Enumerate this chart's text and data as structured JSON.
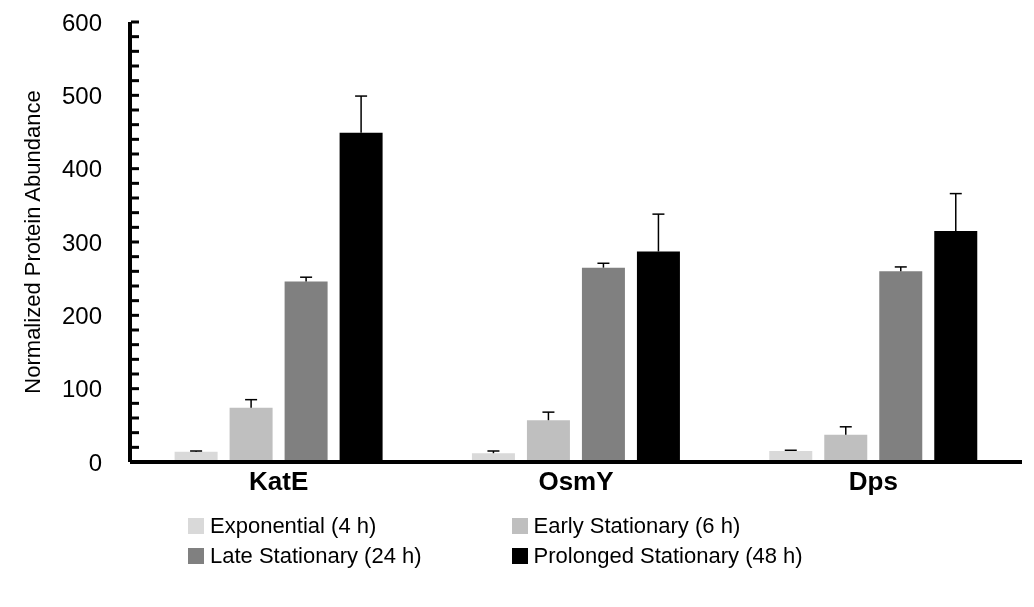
{
  "chart_data": {
    "type": "bar",
    "ylabel": "Normalized Protein Abundance",
    "categories": [
      "KatE",
      "OsmY",
      "Dps"
    ],
    "series": [
      {
        "name": "Exponential (4 h)",
        "color": "#d9d9d9",
        "values": [
          14,
          12,
          15
        ],
        "errors": [
          [
            14,
            15
          ],
          [
            12,
            15
          ],
          [
            15,
            16
          ]
        ]
      },
      {
        "name": "Early Stationary (6 h)",
        "color": "#bfbfbf",
        "values": [
          74,
          57,
          37
        ],
        "errors": [
          [
            74,
            85
          ],
          [
            57,
            68
          ],
          [
            37,
            48
          ]
        ]
      },
      {
        "name": "Late Stationary (24 h)",
        "color": "#808080",
        "values": [
          246,
          265,
          260
        ],
        "errors": [
          [
            246,
            252
          ],
          [
            265,
            271
          ],
          [
            260,
            266
          ]
        ]
      },
      {
        "name": "Prolonged Stationary (48 h)",
        "color": "#000000",
        "values": [
          449,
          287,
          315
        ],
        "errors": [
          [
            449,
            499
          ],
          [
            287,
            338
          ],
          [
            315,
            366
          ]
        ]
      }
    ],
    "ylim": [
      0,
      600
    ],
    "yticks": [
      0,
      {
        "value": 20,
        "label": null
      },
      {
        "value": 40,
        "label": null
      },
      {
        "value": 60,
        "label": null
      },
      {
        "value": 80,
        "label": null
      },
      100,
      {
        "value": 120,
        "label": null
      },
      {
        "value": 140,
        "label": null
      },
      {
        "value": 160,
        "label": null
      },
      {
        "value": 180,
        "label": null
      },
      200,
      {
        "value": 220,
        "label": null
      },
      {
        "value": 240,
        "label": null
      },
      {
        "value": 260,
        "label": null
      },
      {
        "value": 280,
        "label": null
      },
      300,
      {
        "value": 320,
        "label": null
      },
      {
        "value": 340,
        "label": null
      },
      {
        "value": 360,
        "label": null
      },
      {
        "value": 380,
        "label": null
      },
      400,
      {
        "value": 420,
        "label": null
      },
      {
        "value": 440,
        "label": null
      },
      {
        "value": 460,
        "label": null
      },
      {
        "value": 480,
        "label": null
      },
      500,
      {
        "value": 520,
        "label": null
      },
      {
        "value": 540,
        "label": null
      },
      {
        "value": 560,
        "label": null
      },
      {
        "value": 580,
        "label": null
      },
      600
    ],
    "grid": false,
    "legend": "bottom"
  }
}
